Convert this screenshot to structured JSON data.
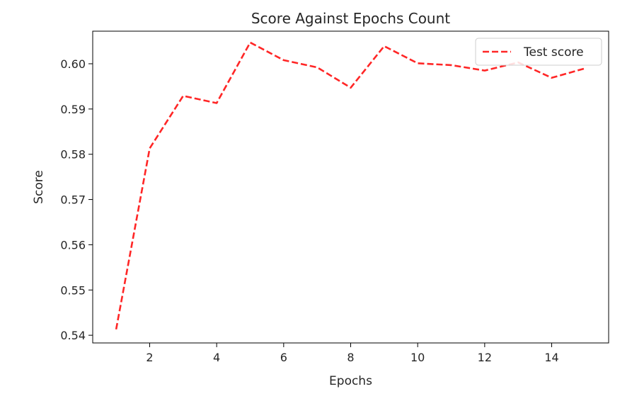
{
  "chart_data": {
    "type": "line",
    "title": "Score Against Epochs Count",
    "xlabel": "Epochs",
    "ylabel": "Score",
    "xlim": [
      0.3,
      15.7
    ],
    "ylim": [
      0.5383,
      0.6072
    ],
    "x_ticks": [
      2,
      4,
      6,
      8,
      10,
      12,
      14
    ],
    "x_tick_labels": [
      "2",
      "4",
      "6",
      "8",
      "10",
      "12",
      "14"
    ],
    "y_ticks": [
      0.54,
      0.55,
      0.56,
      0.57,
      0.58,
      0.59,
      0.6
    ],
    "y_tick_labels": [
      "0.54",
      "0.55",
      "0.56",
      "0.57",
      "0.58",
      "0.59",
      "0.60"
    ],
    "grid": false,
    "legend_position": "top-right",
    "series": [
      {
        "name": "Test score",
        "color": "#ff0000",
        "line_style": "dashed",
        "x": [
          1,
          2,
          3,
          4,
          5,
          6,
          7,
          8,
          9,
          10,
          11,
          12,
          13,
          14,
          15
        ],
        "y": [
          0.5413,
          0.5813,
          0.5929,
          0.5913,
          0.6047,
          0.6008,
          0.5992,
          0.5947,
          0.6039,
          0.6001,
          0.5997,
          0.5985,
          0.6003,
          0.5969,
          0.599
        ]
      }
    ]
  }
}
